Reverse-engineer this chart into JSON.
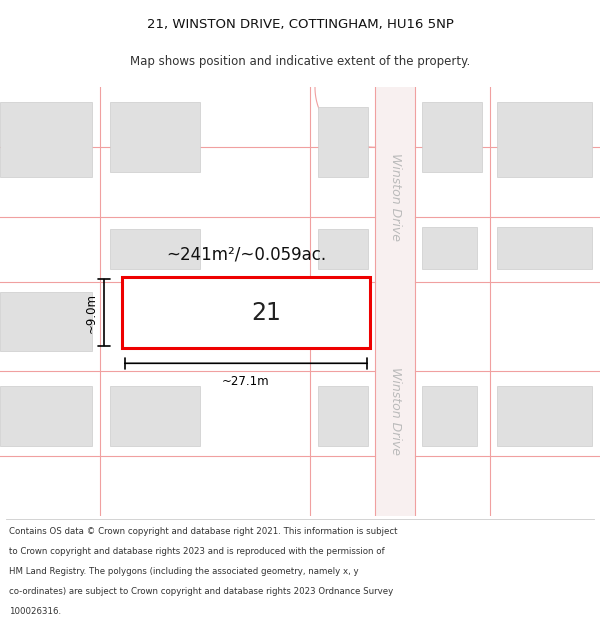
{
  "title_line1": "21, WINSTON DRIVE, COTTINGHAM, HU16 5NP",
  "title_line2": "Map shows position and indicative extent of the property.",
  "bg_color": "#ffffff",
  "map_bg": "#ffffff",
  "road_color": "#f0a0a0",
  "building_fill": "#e0e0e0",
  "building_edge": "#cccccc",
  "highlight_fill": "#ffffff",
  "highlight_edge": "#ee0000",
  "road_label_color": "#bbbbbb",
  "dimension_color": "#000000",
  "area_text": "~241m²/~0.059ac.",
  "number_text": "21",
  "width_label": "~27.1m",
  "height_label": "~9.0m",
  "title_fontsize": 9.5,
  "subtitle_fontsize": 8.5,
  "area_fontsize": 12,
  "number_fontsize": 17,
  "dim_fontsize": 8.5,
  "road_label_fontsize": 9,
  "footer_fontsize": 6.2,
  "footer_lines": [
    "Contains OS data © Crown copyright and database right 2021. This information is subject",
    "to Crown copyright and database rights 2023 and is reproduced with the permission of",
    "HM Land Registry. The polygons (including the associated geometry, namely x, y",
    "co-ordinates) are subject to Crown copyright and database rights 2023 Ordnance Survey",
    "100026316."
  ]
}
